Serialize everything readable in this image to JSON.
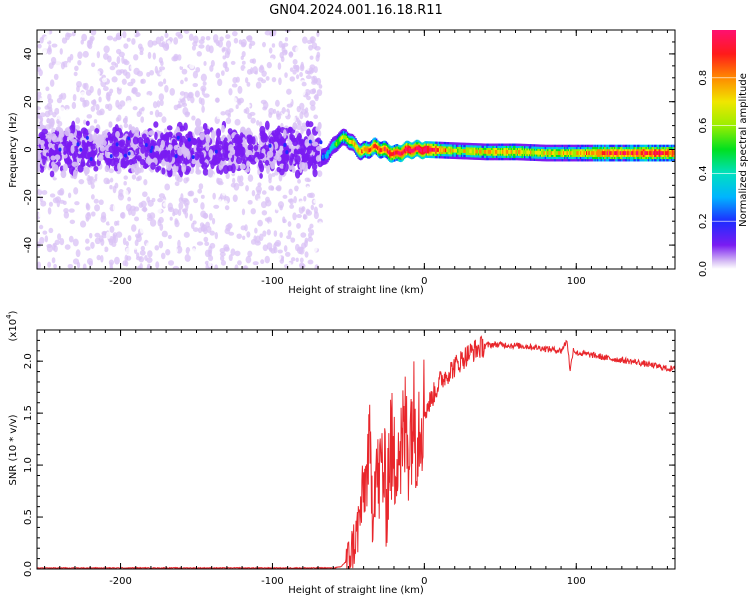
{
  "figure_title": "GN04.2024.001.16.18.R11",
  "chart_data": [
    {
      "type": "heatmap",
      "xlabel": "Height of straight line (km)",
      "ylabel": "Frequency (Hz)",
      "xlim": [
        -255,
        165
      ],
      "ylim": [
        -50,
        50
      ],
      "xticks": [
        -200,
        -100,
        0,
        100
      ],
      "xtick_labels": [
        "-200",
        "-100",
        "0",
        "100"
      ],
      "yticks": [
        -40,
        -20,
        0,
        20,
        40
      ],
      "ytick_labels": [
        "-40",
        "-20",
        "0",
        "20",
        "40"
      ],
      "colorbar": {
        "label": "Normalized spectral amplitude",
        "range": [
          0,
          1
        ],
        "ticks": [
          0.0,
          0.2,
          0.4,
          0.6,
          0.8
        ],
        "tick_labels": [
          "0.0",
          "0.2",
          "0.4",
          "0.6",
          "0.8"
        ]
      },
      "regions": [
        {
          "x_range": [
            -255,
            -68
          ],
          "description_values": {
            "noise_spread_hz": 50,
            "core_band_hz": [
              -7,
              7
            ],
            "peak_amplitude": 0.15
          }
        },
        {
          "x_range": [
            -68,
            0
          ],
          "description_values": {
            "center_hz_start": 1,
            "center_hz_end": 0,
            "peak_amplitude": 1.0
          }
        },
        {
          "x_range": [
            0,
            165
          ],
          "description_values": {
            "center_hz": -1.5,
            "band_halfwidth_hz": 2,
            "peak_amplitude": 1.0
          }
        }
      ],
      "curve": {
        "x": [
          -68,
          -62,
          -57,
          -52,
          -47,
          -42,
          -38,
          -33,
          -28,
          -24,
          -20,
          -15,
          -10,
          -5,
          0,
          20,
          40,
          60,
          80,
          100,
          120,
          140,
          165
        ],
        "freq_hz": [
          -4,
          0,
          4,
          5,
          2,
          -1,
          0,
          1,
          0,
          -1,
          -2,
          -1,
          0,
          0,
          0,
          -0.5,
          -1,
          -1,
          -1.5,
          -1.5,
          -1.5,
          -1.5,
          -1.5
        ],
        "amplitude": [
          0.25,
          0.35,
          0.55,
          0.6,
          0.7,
          0.75,
          0.8,
          0.85,
          0.85,
          0.9,
          0.9,
          0.95,
          0.95,
          0.95,
          1.0,
          0.6,
          0.7,
          0.7,
          0.65,
          0.7,
          0.85,
          0.85,
          0.85
        ]
      }
    },
    {
      "type": "line",
      "xlabel": "Height of straight line (km)",
      "ylabel": "SNR (10 * v/v)",
      "y_multiplier": "(x10",
      "y_multiplier_exp": "4",
      "xlim": [
        -255,
        165
      ],
      "ylim": [
        0,
        2.3
      ],
      "xticks": [
        -200,
        -100,
        0,
        100
      ],
      "xtick_labels": [
        "-200",
        "-100",
        "0",
        "100"
      ],
      "yticks": [
        0.0,
        0.5,
        1.0,
        1.5,
        2.0
      ],
      "ytick_labels": [
        "0.0",
        "0.5",
        "1.0",
        "1.5",
        "2.0"
      ],
      "series": [
        {
          "color": "#e8262b",
          "x": [
            -255,
            -200,
            -150,
            -100,
            -60,
            -55,
            -50,
            -45,
            -42,
            -40,
            -38,
            -36,
            -34,
            -32,
            -30,
            -28,
            -25,
            -22,
            -20,
            -18,
            -15,
            -12,
            -10,
            -8,
            -5,
            -2,
            0,
            5,
            10,
            15,
            20,
            25,
            30,
            35,
            40,
            45,
            50,
            60,
            70,
            80,
            90,
            94,
            96,
            98,
            100,
            110,
            120,
            130,
            140,
            150,
            160,
            165
          ],
          "y": [
            0.01,
            0.01,
            0.01,
            0.01,
            0.01,
            0.02,
            0.1,
            0.3,
            0.55,
            0.75,
            0.9,
            1.2,
            0.6,
            1.0,
            0.8,
            1.05,
            0.7,
            1.25,
            0.9,
            1.3,
            1.1,
            1.4,
            1.2,
            1.5,
            1.35,
            1.55,
            1.5,
            1.65,
            1.8,
            1.88,
            1.95,
            2.02,
            2.08,
            2.12,
            2.15,
            2.16,
            2.16,
            2.15,
            2.14,
            2.12,
            2.1,
            2.2,
            1.9,
            2.12,
            2.08,
            2.06,
            2.03,
            2.01,
            1.99,
            1.96,
            1.93,
            1.92
          ]
        }
      ]
    }
  ]
}
